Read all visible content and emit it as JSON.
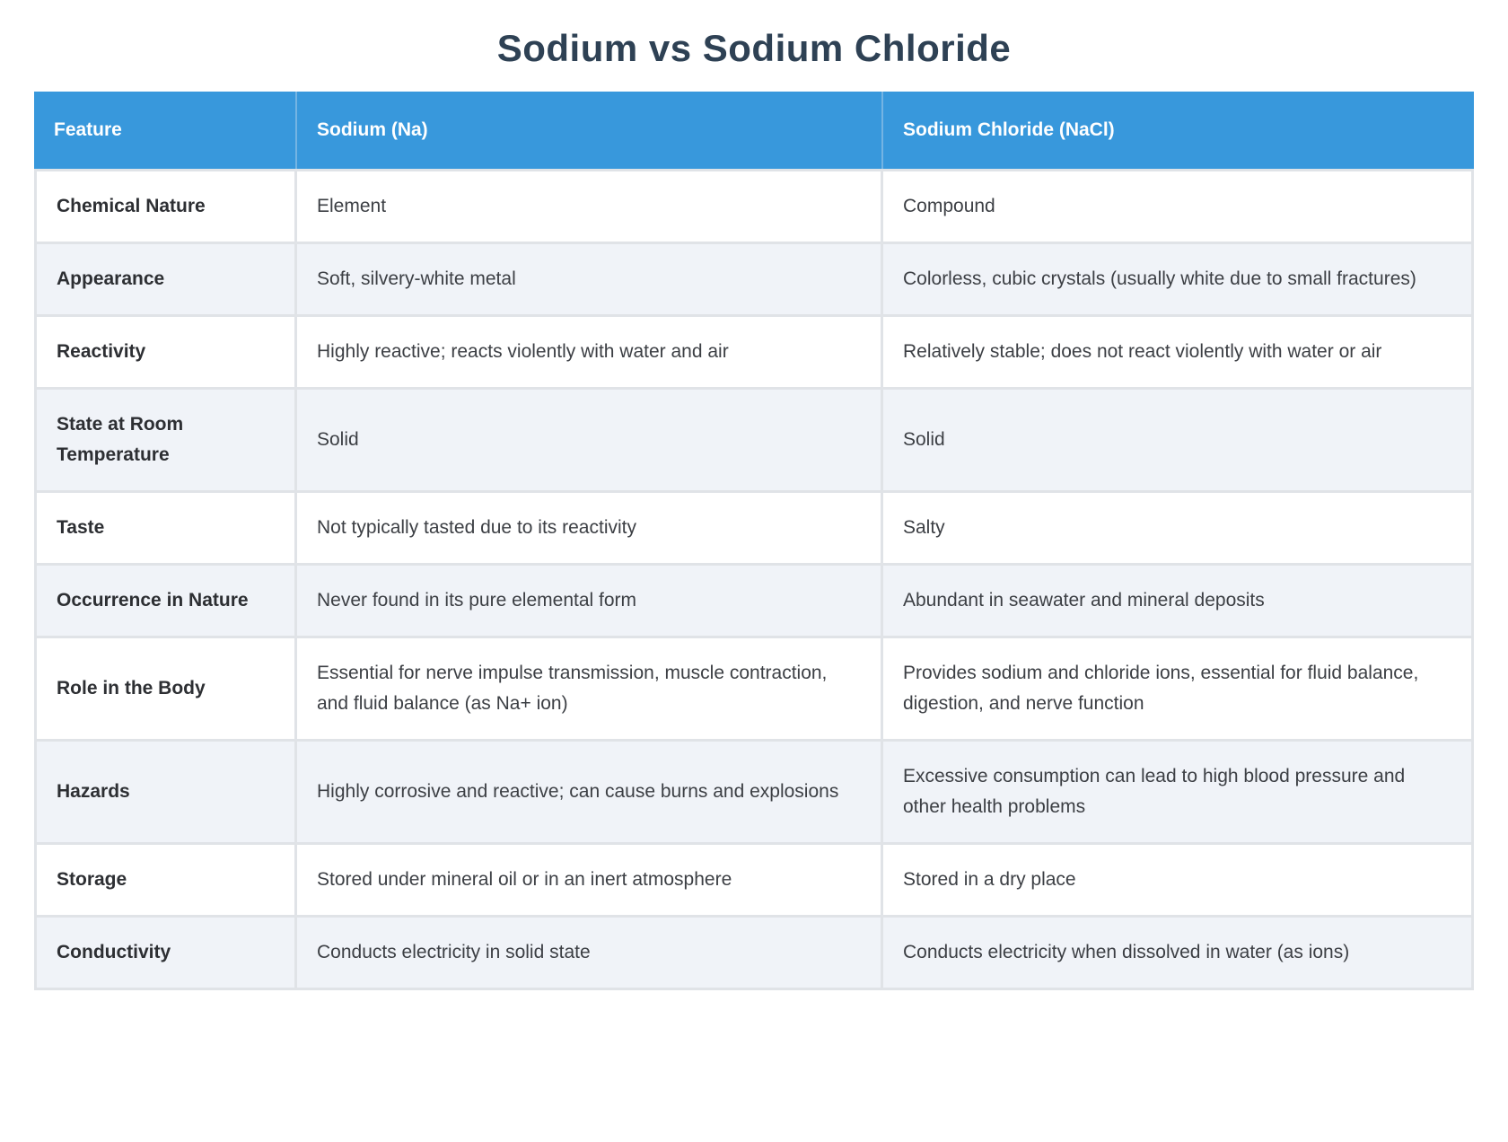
{
  "page": {
    "title": "Sodium vs Sodium Chloride"
  },
  "colors": {
    "header_bg": "#3898dc",
    "header_divider": "#74b4e3",
    "header_text": "#ffffff",
    "row_bg": "#ffffff",
    "row_alt_bg": "#f0f3f8",
    "cell_divider": "#e0e3e7",
    "title_text": "#2e4154",
    "body_text": "#3c3f44"
  },
  "table": {
    "columns": [
      {
        "label": "Feature"
      },
      {
        "label": "Sodium (Na)"
      },
      {
        "label": "Sodium Chloride (NaCl)"
      }
    ],
    "rows": [
      {
        "feature": "Chemical Nature",
        "sodium": "Element",
        "sodium_chloride": "Compound"
      },
      {
        "feature": "Appearance",
        "sodium": "Soft, silvery-white metal",
        "sodium_chloride": "Colorless, cubic crystals (usually white due to small fractures)"
      },
      {
        "feature": "Reactivity",
        "sodium": "Highly reactive; reacts violently with water and air",
        "sodium_chloride": "Relatively stable; does not react violently with water or air"
      },
      {
        "feature": "State at Room Temperature",
        "sodium": "Solid",
        "sodium_chloride": "Solid"
      },
      {
        "feature": "Taste",
        "sodium": "Not typically tasted due to its reactivity",
        "sodium_chloride": "Salty"
      },
      {
        "feature": "Occurrence in Nature",
        "sodium": "Never found in its pure elemental form",
        "sodium_chloride": "Abundant in seawater and mineral deposits"
      },
      {
        "feature": "Role in the Body",
        "sodium": "Essential for nerve impulse transmission, muscle contraction, and fluid balance (as Na+ ion)",
        "sodium_chloride": "Provides sodium and chloride ions, essential for fluid balance, digestion, and nerve function"
      },
      {
        "feature": "Hazards",
        "sodium": "Highly corrosive and reactive; can cause burns and explosions",
        "sodium_chloride": "Excessive consumption can lead to high blood pressure and other health problems"
      },
      {
        "feature": "Storage",
        "sodium": "Stored under mineral oil or in an inert atmosphere",
        "sodium_chloride": "Stored in a dry place"
      },
      {
        "feature": "Conductivity",
        "sodium": "Conducts electricity in solid state",
        "sodium_chloride": "Conducts electricity when dissolved in water (as ions)"
      }
    ]
  }
}
